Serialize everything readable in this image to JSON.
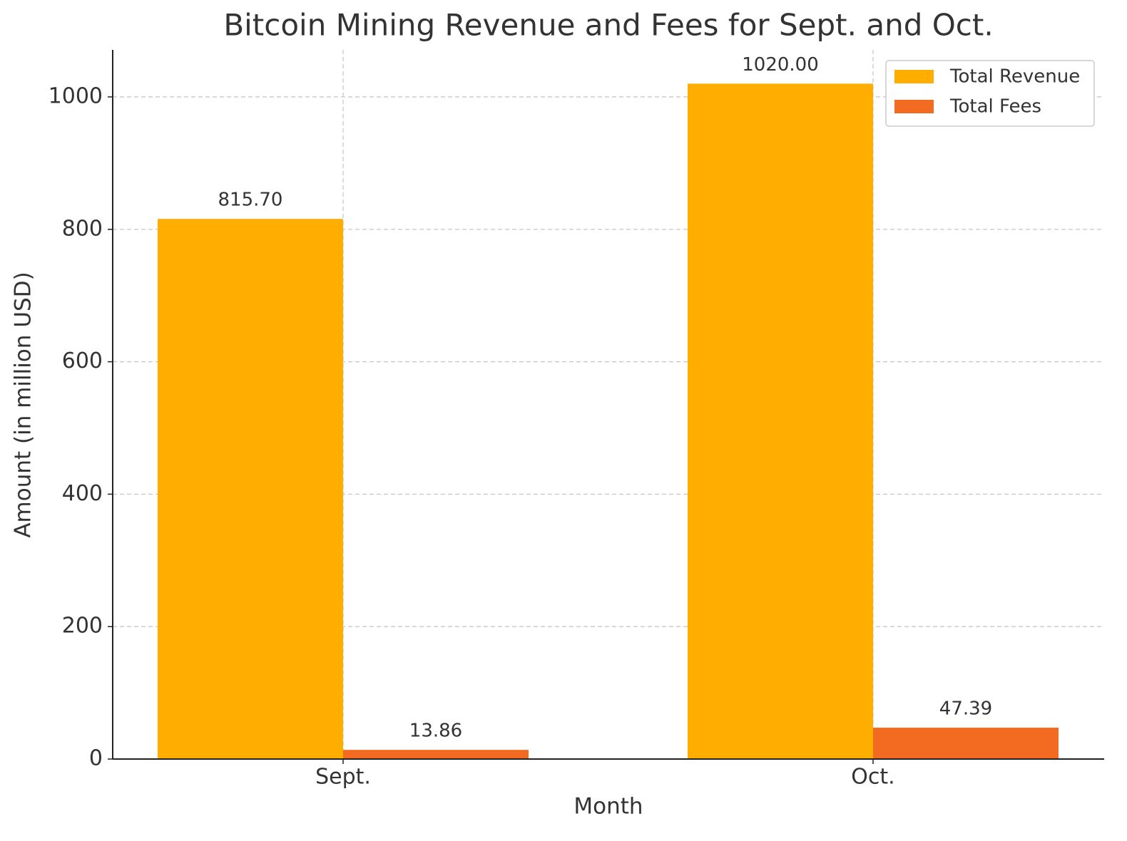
{
  "chart_data": {
    "type": "bar",
    "title": "Bitcoin Mining Revenue and Fees for Sept. and Oct.",
    "x_label": "Month",
    "y_label": "Amount (in million USD)",
    "categories": [
      "Sept.",
      "Oct."
    ],
    "series": [
      {
        "name": "Total Revenue",
        "color": "#ffae00",
        "values": [
          815.7,
          1020
        ],
        "value_labels": [
          "815.70",
          "1020.00"
        ]
      },
      {
        "name": "Total Fees",
        "color": "#f26b21",
        "values": [
          13.86,
          47.39
        ],
        "value_labels": [
          "13.86",
          "47.39"
        ]
      }
    ],
    "ylim": [
      0,
      1071
    ],
    "yticks": [
      0,
      200,
      400,
      600,
      800,
      1000
    ],
    "grid": true,
    "legend": "upper right"
  }
}
